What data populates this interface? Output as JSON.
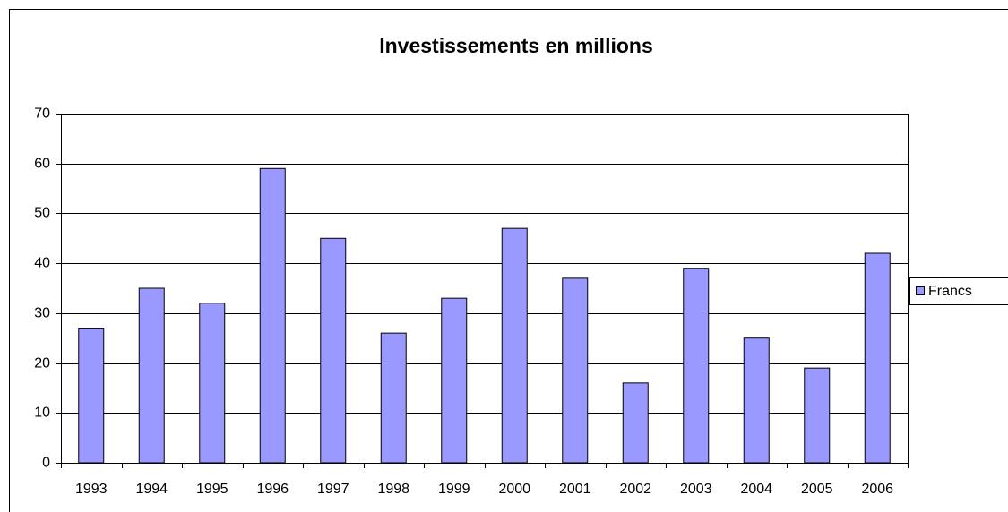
{
  "chart_data": {
    "type": "bar",
    "title": "Investissements en millions",
    "categories": [
      "1993",
      "1994",
      "1995",
      "1996",
      "1997",
      "1998",
      "1999",
      "2000",
      "2001",
      "2002",
      "2003",
      "2004",
      "2005",
      "2006"
    ],
    "series": [
      {
        "name": "Francs",
        "color": "#9999ff",
        "values": [
          27,
          35,
          32,
          59,
          45,
          26,
          33,
          47,
          37,
          16,
          39,
          25,
          19,
          42
        ]
      }
    ],
    "ylim": [
      0,
      70
    ],
    "yticks": [
      0,
      10,
      20,
      30,
      40,
      50,
      60,
      70
    ],
    "grid": true,
    "legend": "right"
  }
}
